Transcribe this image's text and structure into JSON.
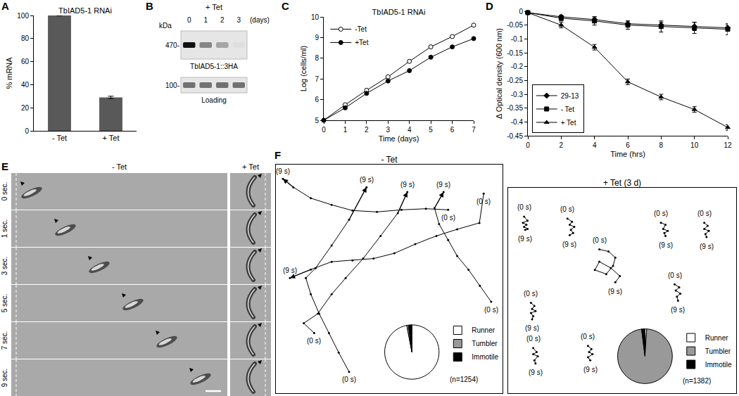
{
  "chart_data": [
    {
      "label": "A",
      "type": "bar",
      "title": "TbIAD5-1 RNAi",
      "y_label": "% mRNA",
      "categories": [
        "- Tet",
        "+ Tet"
      ],
      "values": [
        100,
        29
      ],
      "errors": [
        0,
        1
      ],
      "color": "#595959",
      "ylim": [
        0,
        100
      ],
      "yticks": [
        0,
        20,
        40,
        60,
        80,
        100
      ]
    },
    {
      "label": "C",
      "type": "line",
      "title": "TbIAD5-1 RNAi",
      "x_label": "Time (days)",
      "y_label": "Log (cells/ml)",
      "x": [
        0,
        1,
        2,
        3,
        4,
        5,
        6,
        7
      ],
      "series": [
        {
          "name": "-Tet",
          "color": "#000000",
          "marker": "open_circle",
          "values": [
            5,
            5.75,
            6.45,
            7.1,
            7.85,
            8.55,
            9.05,
            9.6
          ]
        },
        {
          "name": "+Tet",
          "color": "#000000",
          "marker": "circle",
          "values": [
            5,
            5.6,
            6.3,
            6.9,
            7.4,
            8.05,
            8.55,
            8.95
          ]
        }
      ],
      "xlim": [
        0,
        7
      ],
      "xticks": [
        0,
        1,
        2,
        3,
        4,
        5,
        6,
        7
      ],
      "ylim": [
        5,
        10
      ],
      "yticks": [
        5,
        6,
        7,
        8,
        9,
        10
      ],
      "legend": "top left"
    },
    {
      "label": "D",
      "type": "line",
      "x_label": "Time (hrs)",
      "y_label": "Δ Optical density (600 nm)",
      "x": [
        0,
        2,
        4,
        6,
        8,
        10,
        12
      ],
      "series": [
        {
          "name": "29-13",
          "color": "#000000",
          "marker": "diamond",
          "values": [
            -0.005,
            -0.02,
            -0.03,
            -0.045,
            -0.05,
            -0.055,
            -0.06
          ],
          "errors": [
            0,
            0.005,
            0.01,
            0.01,
            0.01,
            0.015,
            0.01
          ]
        },
        {
          "name": "- Tet",
          "color": "#000000",
          "marker": "square",
          "values": [
            -0.005,
            -0.025,
            -0.035,
            -0.05,
            -0.055,
            -0.06,
            -0.065
          ],
          "errors": [
            0,
            0.01,
            0.015,
            0.015,
            0.02,
            0.02,
            0.02
          ]
        },
        {
          "name": "+ Tet",
          "color": "#000000",
          "marker": "triangle",
          "values": [
            -0.005,
            -0.05,
            -0.13,
            -0.255,
            -0.31,
            -0.355,
            -0.42
          ],
          "errors": [
            0,
            0.01,
            0.01,
            0.01,
            0.01,
            0.01,
            0.01
          ]
        }
      ],
      "xlim": [
        0,
        12
      ],
      "xticks": [
        0,
        2,
        4,
        6,
        8,
        10,
        12
      ],
      "ylim": [
        -0.45,
        0
      ],
      "yticks": [
        0,
        -0.05,
        -0.1,
        -0.15,
        -0.2,
        -0.25,
        -0.3,
        -0.35,
        -0.4,
        -0.45
      ],
      "legend": "bottom left"
    },
    {
      "label": "F",
      "type": "trajectory",
      "title": "- Tet",
      "marker": "arrow",
      "tick_labels": false,
      "xlim": [
        0,
        100
      ],
      "ylim": [
        0,
        100
      ],
      "start_label": "(0 s)",
      "end_label": "(9 s)",
      "series": [
        {
          "x": [
            76,
            66.2,
            55.4,
            44.6,
            33.8,
            24.6,
            15.4,
            7.7,
            3.1
          ],
          "y": [
            80.2,
            80.7,
            80.2,
            79.3,
            79.9,
            82.4,
            85.3,
            90.1,
            93.8
          ]
        },
        {
          "x": [
            91.7,
            89.8,
            80,
            70.8,
            61.5,
            52.3,
            43.1,
            33.8,
            24.6,
            15.4,
            6.2
          ],
          "y": [
            87.3,
            74.5,
            71.7,
            68.8,
            65.2,
            61.2,
            58.9,
            58.1,
            57.5,
            54.1,
            50.4
          ]
        },
        {
          "x": [
            32.3,
            27.7,
            23.4,
            19.1,
            15.4,
            13.2,
            17.5,
            24.6,
            32.3,
            40
          ],
          "y": [
            9.3,
            17.8,
            26.3,
            34.8,
            43.3,
            50.4,
            54.7,
            64.6,
            75.9,
            90.1
          ]
        },
        {
          "x": [
            16.9,
            12.3,
            18.5,
            24.6,
            30.8,
            38.5,
            46.2,
            53.8,
            58
          ],
          "y": [
            26.3,
            30.6,
            34.8,
            43.3,
            50.4,
            58.9,
            68.8,
            78.8,
            88
          ]
        },
        {
          "x": [
            95,
            90,
            85,
            80,
            76,
            72,
            70,
            74
          ],
          "y": [
            40,
            47,
            54,
            60,
            67,
            74,
            81,
            88
          ]
        }
      ],
      "pie": {
        "categories": [
          "Runner",
          "Tumbler",
          "Immotile"
        ],
        "values": [
          97,
          1,
          2
        ],
        "colors": [
          "#ffffff",
          "#999999",
          "#000000"
        ],
        "annotation": "(n=1254)"
      }
    },
    {
      "type": "trajectory",
      "title": "+ Tet (3 d)",
      "marker": "dot",
      "tick_labels": false,
      "xlim": [
        0,
        100
      ],
      "ylim": [
        0,
        100
      ],
      "start_label": "(0 s)",
      "end_label": "(9 s)",
      "series": [
        {
          "x": [
            7,
            8.5,
            6.5,
            8,
            7,
            8.5,
            7.5
          ],
          "y": [
            86,
            84,
            83,
            82,
            81,
            80,
            79.5
          ]
        },
        {
          "x": [
            26,
            28,
            27,
            29,
            27.5,
            28.5,
            27
          ],
          "y": [
            85,
            83.5,
            82,
            81,
            79.5,
            78,
            77
          ]
        },
        {
          "x": [
            67,
            69,
            68,
            70,
            68.5,
            69
          ],
          "y": [
            83,
            82,
            80,
            79,
            78,
            76.5
          ]
        },
        {
          "x": [
            86,
            87.5,
            86,
            88,
            86.5,
            87
          ],
          "y": [
            83,
            81.5,
            80,
            79,
            77.5,
            76
          ]
        },
        {
          "x": [
            40,
            44,
            47,
            46,
            43,
            38,
            40,
            45,
            49,
            47
          ],
          "y": [
            70,
            69,
            66,
            62,
            58,
            60,
            64,
            61,
            57,
            54
          ]
        },
        {
          "x": [
            10,
            11.5,
            10.5,
            12,
            10,
            11,
            10.5
          ],
          "y": [
            44,
            42.5,
            41,
            40,
            39,
            37.5,
            36
          ]
        },
        {
          "x": [
            11,
            12.5,
            11,
            13,
            11.5,
            12
          ],
          "y": [
            22,
            20,
            19,
            18,
            16,
            14.5
          ]
        },
        {
          "x": [
            35,
            36.5,
            35.5,
            37,
            35,
            36
          ],
          "y": [
            23,
            21.5,
            20,
            19,
            17.5,
            16
          ]
        },
        {
          "x": [
            73,
            75,
            73.5,
            75.5,
            74,
            74.5
          ],
          "y": [
            53,
            51.5,
            50,
            48.5,
            47,
            45
          ]
        }
      ],
      "pie": {
        "categories": [
          "Runner",
          "Tumbler",
          "Immotile"
        ],
        "values": [
          1,
          97,
          2
        ],
        "colors": [
          "#ffffff",
          "#999999",
          "#000000"
        ],
        "annotation": "(n=1382)"
      }
    }
  ],
  "blot": {
    "label": "B",
    "header": "+ Tet",
    "unit": "kDa",
    "lanes": [
      "0",
      "1",
      "2",
      "3"
    ],
    "lane_unit": "(days)",
    "bands": [
      {
        "size": "470-",
        "name": "TbIAD5-1::3HA",
        "values": [
          1,
          0.45,
          0.3,
          0.03
        ]
      },
      {
        "size": "100-",
        "name": "Loading",
        "values": [
          0.55,
          0.55,
          0.55,
          0.55
        ]
      }
    ]
  },
  "movie": {
    "label": "E",
    "columns": [
      "- Tet",
      "+ Tet"
    ],
    "times": [
      "0 sec.",
      "1 sec.",
      "3 sec.",
      "5 sec.",
      "7 sec.",
      "9 sec."
    ]
  }
}
